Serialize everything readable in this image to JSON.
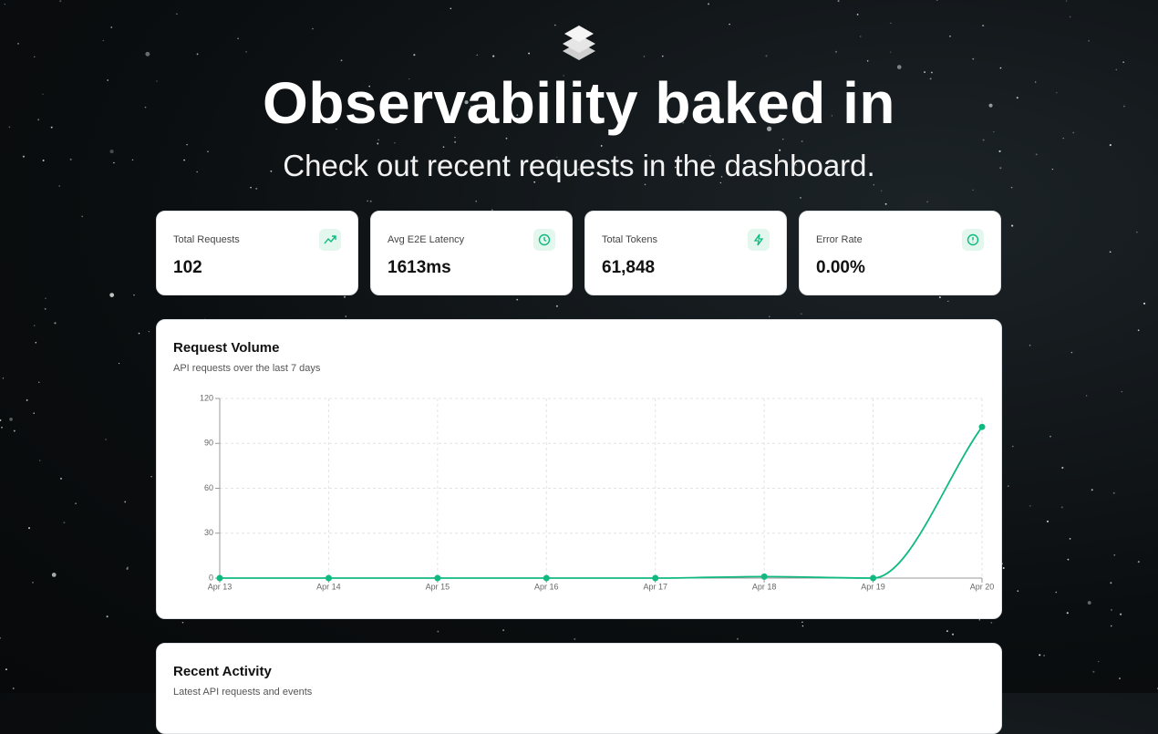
{
  "header": {
    "title": "Observability baked in",
    "subtitle": "Check out recent requests in the dashboard."
  },
  "stats": [
    {
      "label": "Total Requests",
      "value": "102"
    },
    {
      "label": "Avg E2E Latency",
      "value": "1613ms"
    },
    {
      "label": "Total Tokens",
      "value": "61,848"
    },
    {
      "label": "Error Rate",
      "value": "0.00%"
    }
  ],
  "chart_data": {
    "type": "line",
    "title": "Request Volume",
    "subtitle": "API requests over the last 7 days",
    "categories": [
      "Apr 13",
      "Apr 14",
      "Apr 15",
      "Apr 16",
      "Apr 17",
      "Apr 18",
      "Apr 19",
      "Apr 20"
    ],
    "series": [
      {
        "name": "Requests",
        "color": "#10b981",
        "values": [
          0,
          0,
          0,
          0,
          0,
          1,
          0,
          101
        ]
      }
    ],
    "ylim": [
      0,
      120
    ],
    "yticks": [
      0,
      30,
      60,
      90,
      120
    ],
    "grid": true
  },
  "activity": {
    "title": "Recent Activity",
    "subtitle": "Latest API requests and events"
  }
}
